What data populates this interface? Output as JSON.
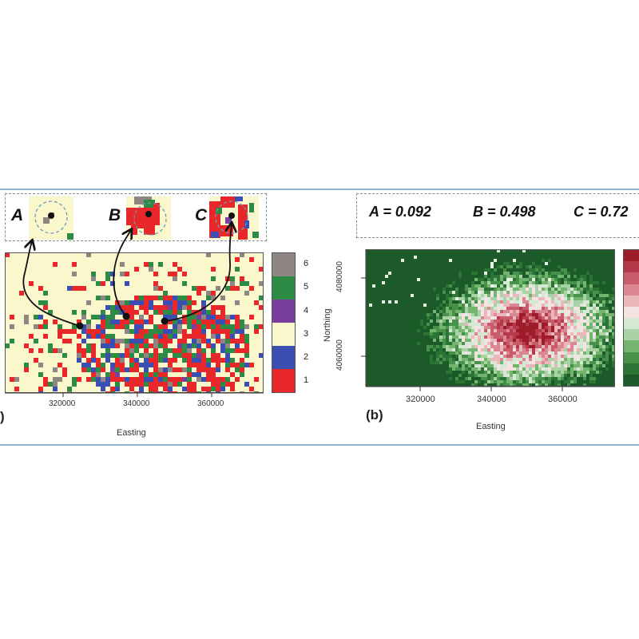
{
  "panel_a": {
    "cutouts": [
      {
        "label": "A"
      },
      {
        "label": "B"
      },
      {
        "label": "C"
      }
    ],
    "x_ticks": [
      "320000",
      "340000",
      "360000"
    ],
    "x_label": "Easting",
    "panel_tag": ")",
    "legend": {
      "classes": [
        "1",
        "2",
        "3",
        "4",
        "5",
        "6"
      ],
      "colors": [
        "#e8272a",
        "#3b4fb3",
        "#fbf7cc",
        "#7a3f9d",
        "#2e8b46",
        "#8e8683"
      ]
    }
  },
  "panel_b": {
    "values": [
      {
        "text": "A = 0.092"
      },
      {
        "text": "B = 0.498"
      },
      {
        "text": "C = 0.72"
      }
    ],
    "x_ticks": [
      "320000",
      "340000",
      "360000"
    ],
    "y_ticks": [
      "4060000",
      "4080000"
    ],
    "x_label": "Easting",
    "y_label": "Northing",
    "panel_tag": "(b)"
  }
}
